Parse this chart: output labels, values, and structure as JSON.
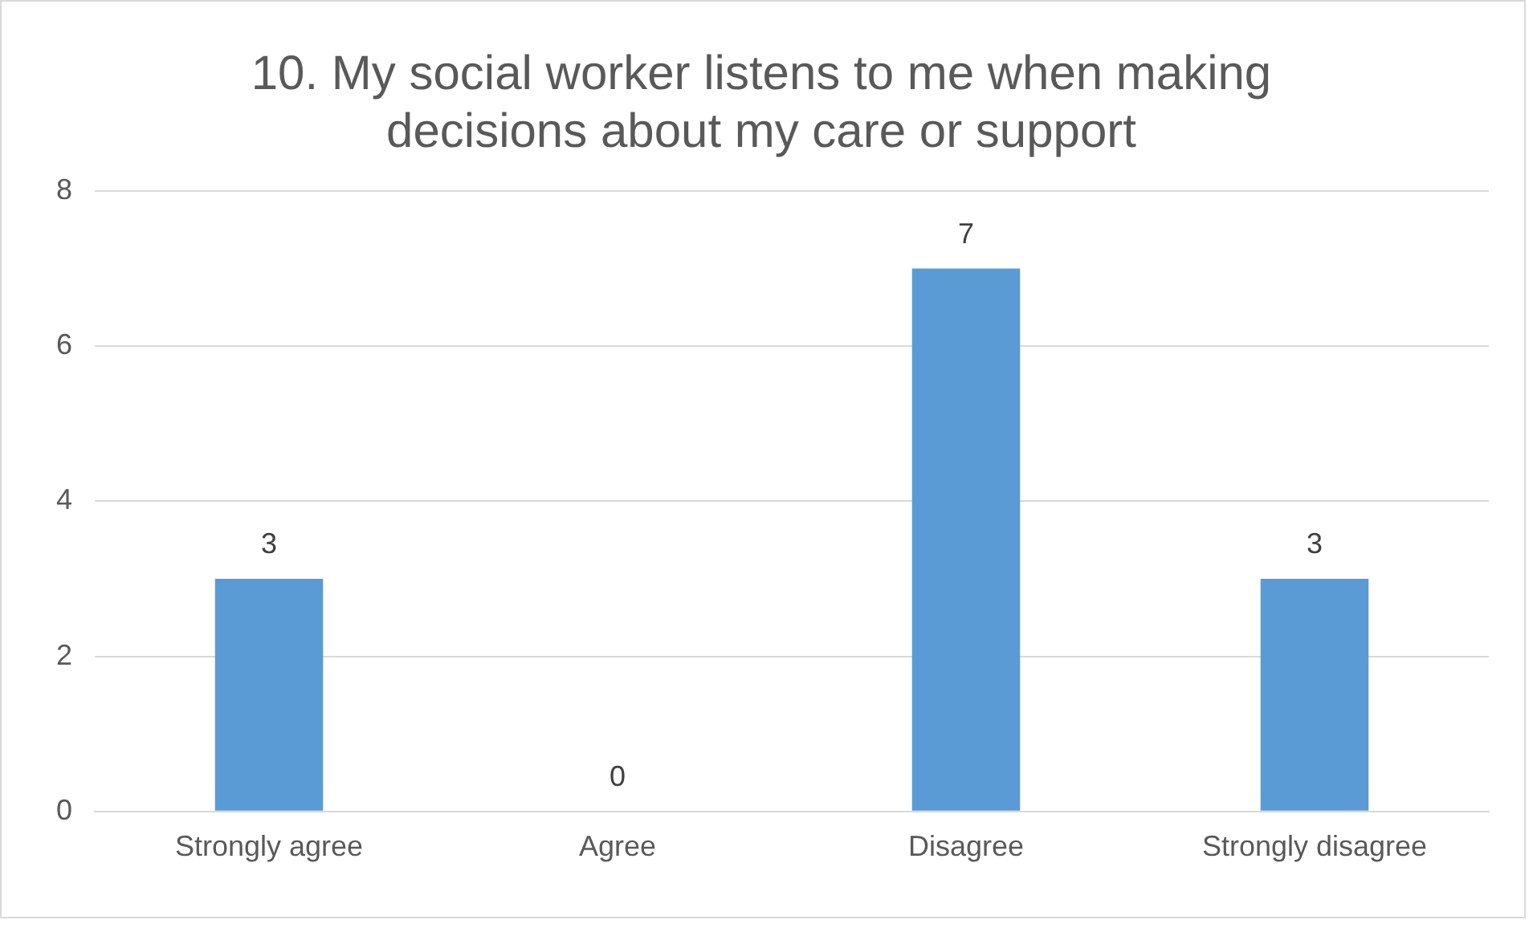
{
  "chart_data": {
    "type": "bar",
    "title": "10. My social worker listens to me when making decisions about my care or support",
    "categories": [
      "Strongly agree",
      "Agree",
      "Disagree",
      "Strongly disagree"
    ],
    "values": [
      3,
      0,
      7,
      3
    ],
    "color": "#5b9bd5",
    "ylim": [
      0,
      8
    ],
    "yticks": [
      0,
      2,
      4,
      6,
      8
    ],
    "grid": "y",
    "data_labels": true
  }
}
